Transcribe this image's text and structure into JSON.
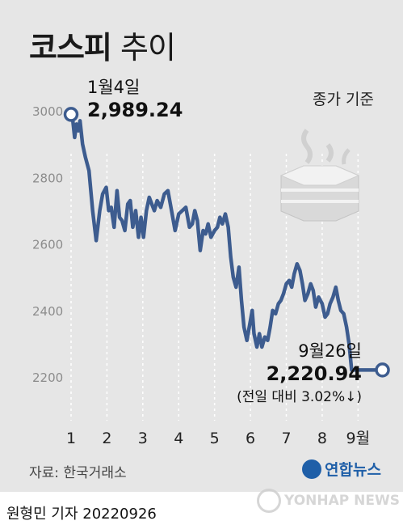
{
  "title": {
    "bold": "코스피",
    "light": "추이"
  },
  "note": "종가 기준",
  "start": {
    "date": "1월4일",
    "value": "2,989.24"
  },
  "end": {
    "date": "9월26일",
    "value": "2,220.94",
    "change": "(전일 대비 3.02%↓)"
  },
  "source": "자료: 한국거래소",
  "logo_text": "연합뉴스",
  "watermark": "YONHAP NEWS",
  "byline": "원형민 기자  20220926",
  "colors": {
    "line": "#3d5c8f",
    "background": "#e6e6e6",
    "text": "#111111"
  },
  "chart_data": {
    "type": "line",
    "title": "코스피 추이",
    "xlabel": "",
    "ylabel": "",
    "ylim": [
      2200,
      3000
    ],
    "y_ticks": [
      3000,
      2800,
      2600,
      2400,
      2200
    ],
    "x_ticks": [
      "1",
      "2",
      "3",
      "4",
      "5",
      "6",
      "7",
      "8",
      "9월"
    ],
    "grid": "vertical-dotted",
    "series": [
      {
        "x": [
          1.0,
          1.05,
          1.1,
          1.15,
          1.2,
          1.25,
          1.32,
          1.4,
          1.5,
          1.6,
          1.7,
          1.8,
          1.88,
          1.93,
          1.98,
          2.05,
          2.12,
          2.2,
          2.28,
          2.35,
          2.42,
          2.5,
          2.58,
          2.65,
          2.72,
          2.8,
          2.88,
          2.95,
          3.02,
          3.1,
          3.18,
          3.25,
          3.32,
          3.4,
          3.5,
          3.6,
          3.7,
          3.8,
          3.9,
          4.0,
          4.1,
          4.2,
          4.3,
          4.38,
          4.45,
          4.52,
          4.6,
          4.68,
          4.75,
          4.82,
          4.9,
          5.0,
          5.08,
          5.15,
          5.22,
          5.3,
          5.38,
          5.45,
          5.52,
          5.6,
          5.68,
          5.75,
          5.82,
          5.9,
          6.0,
          6.05,
          6.1,
          6.18,
          6.25,
          6.32,
          6.4,
          6.48,
          6.55,
          6.62,
          6.7,
          6.78,
          6.85,
          6.92,
          7.0,
          7.08,
          7.15,
          7.22,
          7.3,
          7.38,
          7.45,
          7.52,
          7.6,
          7.68,
          7.75,
          7.82,
          7.9,
          8.0,
          8.08,
          8.15,
          8.22,
          8.3,
          8.38,
          8.45,
          8.52,
          8.6,
          8.68,
          8.75,
          8.82,
          8.9,
          9.0,
          9.08,
          9.15,
          9.22,
          9.3,
          9.38,
          9.45,
          9.52,
          9.6,
          9.68
        ],
        "y": [
          2989.24,
          2970,
          2920,
          2960,
          2940,
          2970,
          2900,
          2860,
          2820,
          2700,
          2610,
          2700,
          2750,
          2760,
          2770,
          2700,
          2710,
          2650,
          2760,
          2680,
          2670,
          2640,
          2720,
          2730,
          2650,
          2700,
          2620,
          2680,
          2620,
          2700,
          2740,
          2720,
          2700,
          2730,
          2710,
          2750,
          2760,
          2700,
          2640,
          2690,
          2700,
          2710,
          2650,
          2660,
          2700,
          2670,
          2580,
          2640,
          2630,
          2660,
          2620,
          2640,
          2650,
          2680,
          2660,
          2690,
          2650,
          2560,
          2500,
          2470,
          2530,
          2430,
          2350,
          2310,
          2370,
          2400,
          2330,
          2290,
          2330,
          2290,
          2320,
          2310,
          2350,
          2400,
          2390,
          2420,
          2430,
          2450,
          2480,
          2490,
          2470,
          2510,
          2540,
          2520,
          2480,
          2430,
          2450,
          2480,
          2460,
          2410,
          2440,
          2420,
          2380,
          2390,
          2420,
          2440,
          2470,
          2430,
          2400,
          2390,
          2350,
          2300,
          2220.94,
          2220.94,
          2220.94,
          2220.94,
          2220.94,
          2220.94,
          2220.94,
          2220.94,
          2220.94,
          2220.94,
          2220.94,
          2220.94
        ]
      }
    ]
  }
}
